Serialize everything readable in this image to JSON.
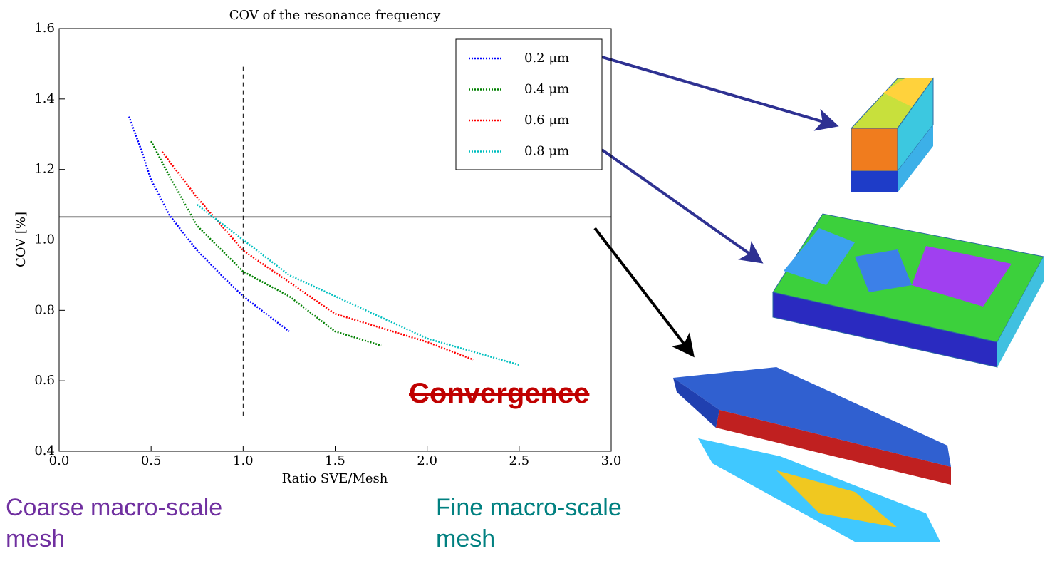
{
  "chart_data": {
    "type": "line",
    "title": "COV of the resonance frequency",
    "xlabel": "Ratio SVE/Mesh",
    "ylabel": "COV [%]",
    "xlim": [
      0,
      3
    ],
    "ylim": [
      0.4,
      1.6
    ],
    "xticks": [
      {
        "value": 0,
        "label": "0.0"
      },
      0.5,
      {
        "value": 1,
        "label": "1.0"
      },
      1.5,
      {
        "value": 2,
        "label": "2.0"
      },
      2.5,
      {
        "value": 3,
        "label": "3.0"
      }
    ],
    "yticks": [
      0.4,
      0.6,
      0.8,
      {
        "value": 1,
        "label": "1.0"
      },
      1.2,
      1.4,
      1.6
    ],
    "legend": "upper right",
    "series": [
      {
        "name": "0.2 μm",
        "color": "#0000ff",
        "x": [
          0.38,
          0.45,
          0.5,
          0.6,
          0.75,
          0.9,
          1.0,
          1.25
        ],
        "values": [
          1.35,
          1.25,
          1.17,
          1.07,
          0.97,
          0.89,
          0.84,
          0.74
        ]
      },
      {
        "name": "0.4 μm",
        "color": "#008000",
        "x": [
          0.5,
          0.6,
          0.75,
          1.0,
          1.25,
          1.5,
          1.75
        ],
        "values": [
          1.28,
          1.18,
          1.04,
          0.91,
          0.84,
          0.74,
          0.7
        ]
      },
      {
        "name": "0.6 μm",
        "color": "#ff0000",
        "x": [
          0.56,
          0.75,
          1.0,
          1.25,
          1.5,
          2.0,
          2.25
        ],
        "values": [
          1.25,
          1.12,
          0.97,
          0.88,
          0.79,
          0.71,
          0.66
        ]
      },
      {
        "name": "0.8 μm",
        "color": "#00bfbf",
        "x": [
          0.75,
          1.0,
          1.25,
          1.5,
          2.0,
          2.5
        ],
        "values": [
          1.1,
          1.0,
          0.9,
          0.84,
          0.72,
          0.645
        ]
      }
    ],
    "vline": {
      "x": 1.0,
      "ymin": 0.5,
      "ymax": 1.5
    },
    "hline": 1.065,
    "annotation": "Convergence",
    "captions": [
      "Coarse macro-scale mesh",
      "Fine macro-scale mesh"
    ]
  }
}
